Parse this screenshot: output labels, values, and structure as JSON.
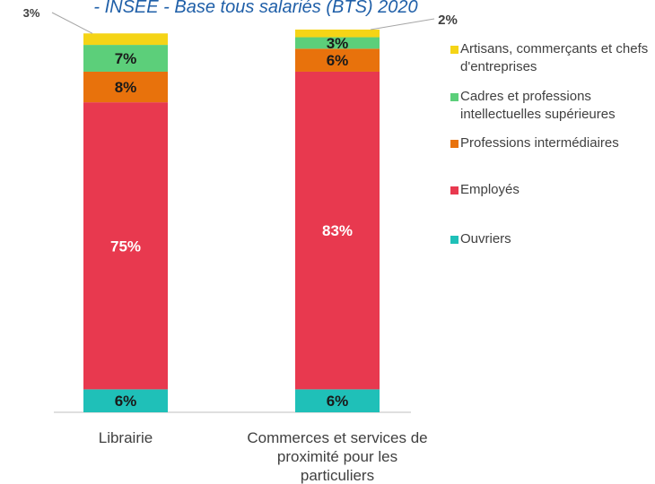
{
  "chart_data": {
    "type": "stacked_bar",
    "title": "- INSEE - Base tous salariés (BTS) 2020",
    "categories": [
      "Librairie",
      "Commerces et services de proximité pour les particuliers"
    ],
    "series": [
      {
        "name": "Ouvriers",
        "color": "#1fc0b8",
        "values": [
          6,
          6
        ],
        "value_labels": [
          "6%",
          "6%"
        ]
      },
      {
        "name": "Employés",
        "color": "#e8394f",
        "values": [
          75,
          83
        ],
        "value_labels": [
          "75%",
          "83%"
        ]
      },
      {
        "name": "Professions intermédiaires",
        "color": "#e8720c",
        "values": [
          8,
          6
        ],
        "value_labels": [
          "8%",
          "6%"
        ]
      },
      {
        "name": "Cadres et professions intellectuelles supérieures",
        "color": "#5ccf7a",
        "values": [
          7,
          3
        ],
        "value_labels": [
          "7%",
          "3%"
        ]
      },
      {
        "name": "Artisans, commerçants et chefs d'entreprises",
        "color": "#f5d416",
        "values": [
          3,
          2
        ],
        "value_labels": [
          "3%",
          "2%"
        ]
      }
    ],
    "legend": "right"
  }
}
